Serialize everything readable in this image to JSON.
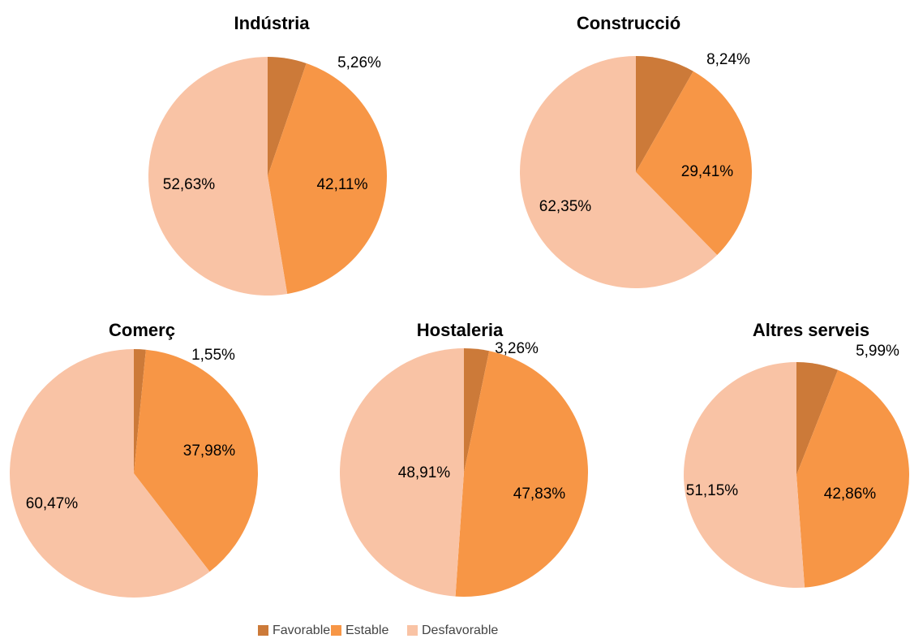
{
  "chart_data": [
    {
      "type": "pie",
      "title": "Indústria",
      "values": [
        5.26,
        42.11,
        52.63
      ],
      "value_labels": [
        "5,26%",
        "42,11%",
        "52,63%"
      ]
    },
    {
      "type": "pie",
      "title": "Construcció",
      "values": [
        8.24,
        29.41,
        62.35
      ],
      "value_labels": [
        "8,24%",
        "29,41%",
        "62,35%"
      ]
    },
    {
      "type": "pie",
      "title": "Comerç",
      "values": [
        1.55,
        37.98,
        60.47
      ],
      "value_labels": [
        "1,55%",
        "37,98%",
        "60,47%"
      ]
    },
    {
      "type": "pie",
      "title": "Hostaleria",
      "values": [
        3.26,
        47.83,
        48.91
      ],
      "value_labels": [
        "3,26%",
        "47,83%",
        "48,91%"
      ]
    },
    {
      "type": "pie",
      "title": "Altres serveis",
      "values": [
        5.99,
        42.86,
        51.15
      ],
      "value_labels": [
        "5,99%",
        "42,86%",
        "51,15%"
      ]
    }
  ],
  "legend": {
    "labels": [
      "Favorable",
      "Estable",
      "Desfavorable"
    ],
    "colors": [
      "#cc7a39",
      "#f79646",
      "#f9c3a5"
    ]
  }
}
